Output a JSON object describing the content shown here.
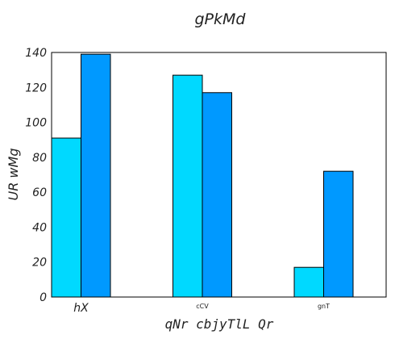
{
  "chart_data": {
    "type": "bar",
    "title": "gPkMd",
    "xlabel": "qNr cbjyTlL Qr",
    "ylabel": "UR wMg",
    "categories": [
      "hX",
      "cCV",
      "gnT"
    ],
    "series": [
      {
        "values": [
          91,
          127,
          17
        ],
        "color": "#00d9ff"
      },
      {
        "values": [
          139,
          117,
          72
        ],
        "color": "#0099ff"
      }
    ],
    "ylim": [
      0,
      140
    ],
    "yticks": [
      "0",
      "20",
      "40",
      "60",
      "80",
      "100",
      "120",
      "140"
    ],
    "grid": false,
    "legend": "none"
  }
}
